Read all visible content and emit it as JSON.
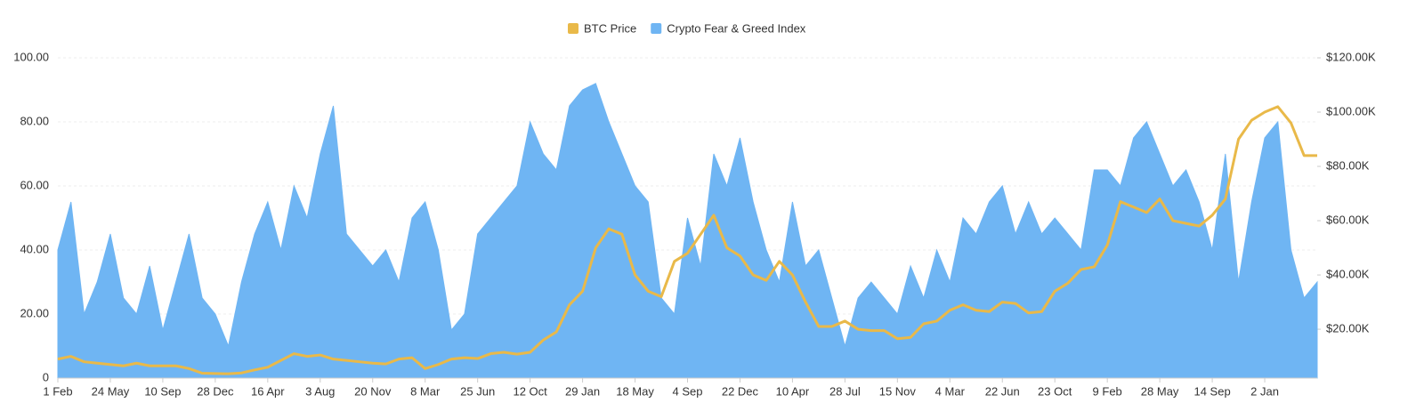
{
  "chart_data": {
    "type": "area-line",
    "categories": [
      "1 Feb",
      null,
      null,
      null,
      "24 May",
      null,
      null,
      null,
      "10 Sep",
      null,
      null,
      null,
      "28 Dec",
      null,
      null,
      null,
      "16 Apr",
      null,
      null,
      null,
      "3 Aug",
      null,
      null,
      null,
      "20 Nov",
      null,
      null,
      null,
      "8 Mar",
      null,
      null,
      null,
      "25 Jun",
      null,
      null,
      null,
      "12 Oct",
      null,
      null,
      null,
      "29 Jan",
      null,
      null,
      null,
      "18 May",
      null,
      null,
      null,
      "4 Sep",
      null,
      null,
      null,
      "22 Dec",
      null,
      null,
      null,
      "10 Apr",
      null,
      null,
      null,
      "28 Jul",
      null,
      null,
      null,
      "15 Nov",
      null,
      null,
      null,
      "4 Mar",
      null,
      null,
      null,
      "22 Jun",
      null,
      null,
      null,
      "23 Oct",
      null,
      null,
      null,
      "9 Feb",
      null,
      null,
      null,
      "28 May",
      null,
      null,
      null,
      "14 Sep",
      null,
      null,
      null,
      "2 Jan",
      null,
      null,
      null,
      null
    ],
    "series": [
      {
        "name": "BTC Price",
        "color": "#e9b949",
        "axis": "y2",
        "kind": "line",
        "values": [
          9000,
          10000,
          8000,
          7500,
          7000,
          6500,
          7500,
          6500,
          6500,
          6500,
          5500,
          3800,
          3700,
          3600,
          3900,
          5000,
          6000,
          8500,
          11000,
          10000,
          10500,
          9000,
          8500,
          8000,
          7500,
          7200,
          9000,
          9500,
          5500,
          7000,
          9000,
          9500,
          9200,
          11000,
          11500,
          10800,
          11500,
          16000,
          19000,
          29000,
          34000,
          50000,
          57000,
          55000,
          40000,
          34000,
          32000,
          45000,
          48000,
          55000,
          62000,
          50000,
          47000,
          40000,
          38000,
          45000,
          40000,
          30000,
          21000,
          21000,
          23000,
          20000,
          19500,
          19500,
          16500,
          17000,
          22000,
          23000,
          27000,
          29000,
          27000,
          26500,
          30000,
          29500,
          26000,
          26500,
          34000,
          37000,
          42000,
          43000,
          51000,
          67000,
          65000,
          63000,
          68000,
          60000,
          59000,
          58000,
          62000,
          68000,
          90000,
          97000,
          100000,
          102000,
          96000,
          84000,
          84000
        ]
      },
      {
        "name": "Crypto Fear & Greed Index",
        "color": "#6fb5f3",
        "axis": "y",
        "kind": "area",
        "values": [
          40,
          55,
          20,
          30,
          45,
          25,
          20,
          35,
          15,
          30,
          45,
          25,
          20,
          10,
          30,
          45,
          55,
          40,
          60,
          50,
          70,
          85,
          45,
          40,
          35,
          40,
          30,
          50,
          55,
          40,
          15,
          20,
          45,
          50,
          55,
          60,
          80,
          70,
          65,
          85,
          90,
          92,
          80,
          70,
          60,
          55,
          25,
          20,
          50,
          35,
          70,
          60,
          75,
          55,
          40,
          30,
          55,
          35,
          40,
          25,
          10,
          25,
          30,
          25,
          20,
          35,
          25,
          40,
          30,
          50,
          45,
          55,
          60,
          45,
          55,
          45,
          50,
          45,
          40,
          65,
          65,
          60,
          75,
          80,
          70,
          60,
          65,
          55,
          40,
          70,
          30,
          55,
          75,
          80,
          40,
          25,
          30
        ]
      }
    ],
    "ylim": [
      0,
      100
    ],
    "yticks": [
      0,
      {
        "value": 20,
        "label": "20.00"
      },
      {
        "value": 40,
        "label": "40.00"
      },
      {
        "value": 60,
        "label": "60.00"
      },
      {
        "value": 80,
        "label": "80.00"
      },
      {
        "value": 100,
        "label": "100.00"
      }
    ],
    "y2lim": [
      2000,
      120000
    ],
    "y2ticks": [
      {
        "value": 20000,
        "label": "$20.00K"
      },
      {
        "value": 40000,
        "label": "$40.00K"
      },
      {
        "value": 60000,
        "label": "$60.00K"
      },
      {
        "value": 80000,
        "label": "$80.00K"
      },
      {
        "value": 100000,
        "label": "$100.00K"
      },
      {
        "value": 120000,
        "label": "$120.00K"
      }
    ],
    "grid": true
  }
}
